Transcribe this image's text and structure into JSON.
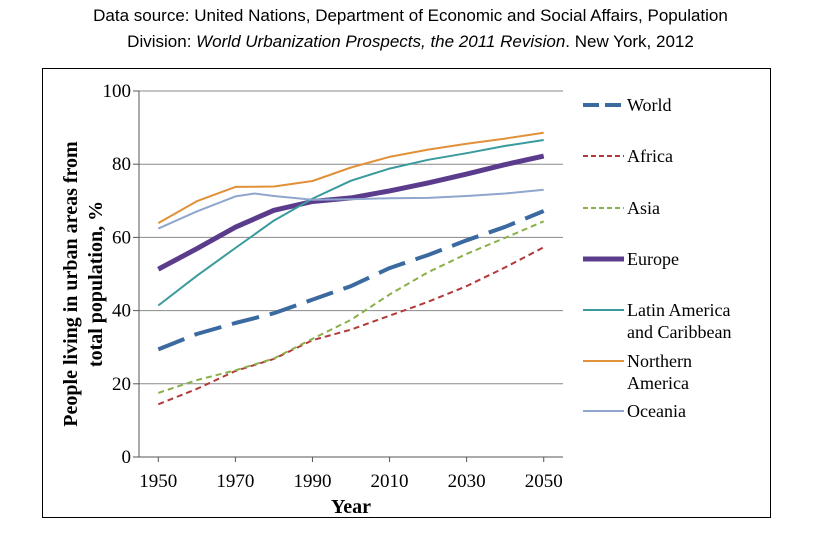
{
  "caption": {
    "line1": "Data source: United Nations, Department of Economic and Social Affairs, Population",
    "line2_pre": "Division: ",
    "line2_italic": "World Urbanization Prospects, the 2011 Revision",
    "line2_post": ". New York, 2012"
  },
  "chart_data": {
    "type": "line",
    "xlabel": "Year",
    "ylabel_lines": [
      "People living in urban areas from",
      "total population, %"
    ],
    "xlim": [
      1945,
      2055
    ],
    "ylim": [
      0,
      100
    ],
    "x_ticks": [
      1950,
      1970,
      1990,
      2010,
      2030,
      2050
    ],
    "y_ticks": [
      0,
      20,
      40,
      60,
      80,
      100
    ],
    "grid": "horizontal",
    "legend_position": "right",
    "series": [
      {
        "name": "World",
        "color": "#3b6aa0",
        "dash": "long-dash",
        "width": 4,
        "x": [
          1950,
          1960,
          1970,
          1980,
          1990,
          2000,
          2010,
          2020,
          2030,
          2040,
          2050
        ],
        "y": [
          29.4,
          33.6,
          36.6,
          39.3,
          43.0,
          46.7,
          51.6,
          55.2,
          59.2,
          62.9,
          67.2
        ]
      },
      {
        "name": "Africa",
        "color": "#b23a3a",
        "dash": "short-dash",
        "width": 2,
        "x": [
          1950,
          1960,
          1970,
          1980,
          1990,
          2000,
          2010,
          2020,
          2030,
          2040,
          2050
        ],
        "y": [
          14.4,
          18.6,
          23.5,
          26.8,
          31.9,
          34.8,
          38.6,
          42.4,
          46.7,
          51.8,
          57.3
        ]
      },
      {
        "name": "Asia",
        "color": "#8ab04a",
        "dash": "short-dash",
        "width": 2,
        "x": [
          1950,
          1960,
          1970,
          1980,
          1990,
          2000,
          2010,
          2020,
          2030,
          2040,
          2050
        ],
        "y": [
          17.5,
          21.0,
          23.7,
          26.9,
          32.3,
          37.5,
          44.4,
          50.5,
          55.5,
          59.9,
          64.4
        ]
      },
      {
        "name": "Europe",
        "color": "#5b3c8c",
        "dash": "solid",
        "width": 5,
        "x": [
          1950,
          1960,
          1970,
          1980,
          1990,
          2000,
          2010,
          2020,
          2030,
          2040,
          2050
        ],
        "y": [
          51.3,
          56.9,
          62.8,
          67.4,
          69.8,
          70.8,
          72.7,
          74.9,
          77.3,
          79.9,
          82.2
        ]
      },
      {
        "name": "Latin America and Caribbean",
        "color": "#3a9a9e",
        "dash": "solid",
        "width": 2,
        "x": [
          1950,
          1960,
          1970,
          1980,
          1990,
          2000,
          2010,
          2020,
          2030,
          2040,
          2050
        ],
        "y": [
          41.4,
          49.5,
          57.1,
          64.6,
          70.6,
          75.5,
          78.8,
          81.2,
          83.0,
          85.0,
          86.6
        ]
      },
      {
        "name": "Northern America",
        "color": "#e0913a",
        "dash": "solid",
        "width": 2,
        "x": [
          1950,
          1960,
          1970,
          1980,
          1990,
          2000,
          2010,
          2020,
          2030,
          2040,
          2050
        ],
        "y": [
          63.9,
          69.9,
          73.8,
          73.9,
          75.4,
          79.1,
          82.0,
          84.0,
          85.6,
          87.0,
          88.6
        ]
      },
      {
        "name": "Oceania",
        "color": "#8fa6cf",
        "dash": "solid",
        "width": 2,
        "x": [
          1950,
          1960,
          1970,
          1975,
          1980,
          1990,
          2000,
          2010,
          2020,
          2030,
          2040,
          2050
        ],
        "y": [
          62.4,
          67.1,
          71.2,
          72.0,
          71.3,
          70.3,
          70.4,
          70.7,
          70.8,
          71.3,
          72.0,
          73.0
        ]
      }
    ],
    "legend_labels": [
      [
        "World"
      ],
      [
        "Africa"
      ],
      [
        "Asia"
      ],
      [
        "Europe"
      ],
      [
        "Latin America",
        "and Caribbean"
      ],
      [
        "Northern",
        "America"
      ],
      [
        "Oceania"
      ]
    ]
  }
}
